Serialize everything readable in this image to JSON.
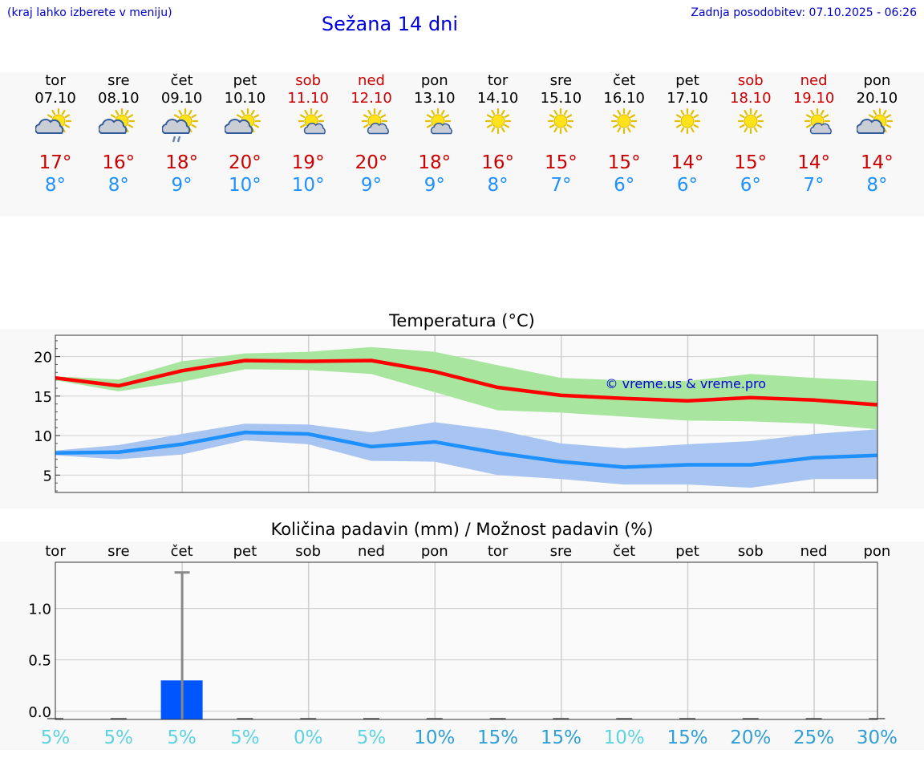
{
  "header": {
    "hint": "(kraj lahko izberete v meniju)",
    "title": "Sežana 14 dni",
    "updated": "Zadnja posodobitev: 07.10.2025 - 06:26"
  },
  "colors": {
    "max_line": "#ff0000",
    "max_band": "#a8e6a0",
    "min_line": "#1e90ff",
    "min_band": "#a8c4f0",
    "precip_bar": "#0055ff",
    "tmax_text": "#cc0000",
    "tmin_text": "#1e90ff",
    "weekend_text": "#cc0000"
  },
  "days": [
    {
      "name": "tor",
      "date": "07.10",
      "weekend": false,
      "icon": "sun-cloud-icon",
      "tmax": "17°",
      "tmin": "8°"
    },
    {
      "name": "sre",
      "date": "08.10",
      "weekend": false,
      "icon": "sun-cloud-icon",
      "tmax": "16°",
      "tmin": "8°"
    },
    {
      "name": "čet",
      "date": "09.10",
      "weekend": false,
      "icon": "sun-cloud-rain-icon",
      "tmax": "18°",
      "tmin": "9°"
    },
    {
      "name": "pet",
      "date": "10.10",
      "weekend": false,
      "icon": "sun-cloud-icon",
      "tmax": "20°",
      "tmin": "10°"
    },
    {
      "name": "sob",
      "date": "11.10",
      "weekend": true,
      "icon": "sun-small-cloud-icon",
      "tmax": "19°",
      "tmin": "10°"
    },
    {
      "name": "ned",
      "date": "12.10",
      "weekend": true,
      "icon": "sun-small-cloud-icon",
      "tmax": "20°",
      "tmin": "9°"
    },
    {
      "name": "pon",
      "date": "13.10",
      "weekend": false,
      "icon": "sun-small-cloud-icon",
      "tmax": "18°",
      "tmin": "9°"
    },
    {
      "name": "tor",
      "date": "14.10",
      "weekend": false,
      "icon": "sun-icon",
      "tmax": "16°",
      "tmin": "8°"
    },
    {
      "name": "sre",
      "date": "15.10",
      "weekend": false,
      "icon": "sun-icon",
      "tmax": "15°",
      "tmin": "7°"
    },
    {
      "name": "čet",
      "date": "16.10",
      "weekend": false,
      "icon": "sun-icon",
      "tmax": "15°",
      "tmin": "6°"
    },
    {
      "name": "pet",
      "date": "17.10",
      "weekend": false,
      "icon": "sun-icon",
      "tmax": "14°",
      "tmin": "6°"
    },
    {
      "name": "sob",
      "date": "18.10",
      "weekend": true,
      "icon": "sun-icon",
      "tmax": "15°",
      "tmin": "6°"
    },
    {
      "name": "ned",
      "date": "19.10",
      "weekend": true,
      "icon": "sun-small-cloud-icon",
      "tmax": "14°",
      "tmin": "7°"
    },
    {
      "name": "pon",
      "date": "20.10",
      "weekend": false,
      "icon": "sun-cloud-icon",
      "tmax": "14°",
      "tmin": "8°"
    }
  ],
  "chart_data": [
    {
      "type": "line",
      "title": "Temperatura (°C)",
      "x": [
        "07.10",
        "08.10",
        "09.10",
        "10.10",
        "11.10",
        "12.10",
        "13.10",
        "14.10",
        "15.10",
        "16.10",
        "17.10",
        "18.10",
        "19.10",
        "20.10"
      ],
      "ylim": [
        2.8,
        22.7
      ],
      "yticks": [
        5,
        10,
        15,
        20
      ],
      "grid": true,
      "watermark": "© vreme.us & vreme.pro",
      "series": [
        {
          "values": [
            17.3,
            16.3,
            18.2,
            19.5,
            19.4,
            19.5,
            18.1,
            16.1,
            15.1,
            14.7,
            14.4,
            14.8,
            14.5,
            13.9
          ],
          "band": [
            [
              17.0,
              17.5
            ],
            [
              15.6,
              17.1
            ],
            [
              16.8,
              19.4
            ],
            [
              18.4,
              20.4
            ],
            [
              18.3,
              20.6
            ],
            [
              17.8,
              21.2
            ],
            [
              15.5,
              20.6
            ],
            [
              13.2,
              18.9
            ],
            [
              12.9,
              17.3
            ],
            [
              12.4,
              17.0
            ],
            [
              11.9,
              16.9
            ],
            [
              11.8,
              17.8
            ],
            [
              11.5,
              17.3
            ],
            [
              10.8,
              16.9
            ]
          ]
        },
        {
          "values": [
            7.8,
            7.9,
            8.9,
            10.4,
            10.2,
            8.6,
            9.2,
            7.8,
            6.7,
            6.0,
            6.3,
            6.3,
            7.2,
            7.5
          ],
          "band": [
            [
              7.5,
              8.1
            ],
            [
              7.0,
              8.8
            ],
            [
              7.6,
              10.2
            ],
            [
              9.4,
              11.5
            ],
            [
              8.9,
              11.4
            ],
            [
              6.8,
              10.4
            ],
            [
              6.7,
              11.7
            ],
            [
              5.0,
              10.7
            ],
            [
              4.5,
              9.0
            ],
            [
              3.8,
              8.4
            ],
            [
              3.8,
              8.9
            ],
            [
              3.4,
              9.3
            ],
            [
              4.5,
              10.2
            ],
            [
              4.5,
              10.8
            ]
          ]
        }
      ]
    },
    {
      "type": "bar",
      "title": "Količina padavin (mm) / Možnost padavin (%)",
      "categories": [
        "tor",
        "sre",
        "čet",
        "pet",
        "sob",
        "ned",
        "pon",
        "tor",
        "sre",
        "čet",
        "pet",
        "sob",
        "ned",
        "pon"
      ],
      "values": [
        0,
        0,
        0.3,
        0,
        0,
        0,
        0,
        0,
        0,
        0,
        0,
        0,
        0,
        0
      ],
      "error_high": [
        0,
        0,
        1.35,
        0,
        0,
        0,
        0,
        0,
        0,
        0,
        0,
        0,
        0,
        0
      ],
      "ylim": [
        -0.08,
        1.45
      ],
      "yticks": [
        0.0,
        0.5,
        1.0
      ],
      "yticklabels": [
        "0.0",
        "0.5",
        "1.0"
      ],
      "probabilities": [
        "5%",
        "5%",
        "5%",
        "5%",
        "0%",
        "5%",
        "10%",
        "15%",
        "15%",
        "10%",
        "15%",
        "20%",
        "25%",
        "30%"
      ],
      "prob_colors": [
        "#5bd3e0",
        "#5bd3e0",
        "#5bd3e0",
        "#5bd3e0",
        "#5bd3e0",
        "#5bd3e0",
        "#2f9fd6",
        "#2f9fd6",
        "#2f9fd6",
        "#5bd3e0",
        "#2f9fd6",
        "#2f9fd6",
        "#2f9fd6",
        "#2f9fd6"
      ]
    }
  ]
}
